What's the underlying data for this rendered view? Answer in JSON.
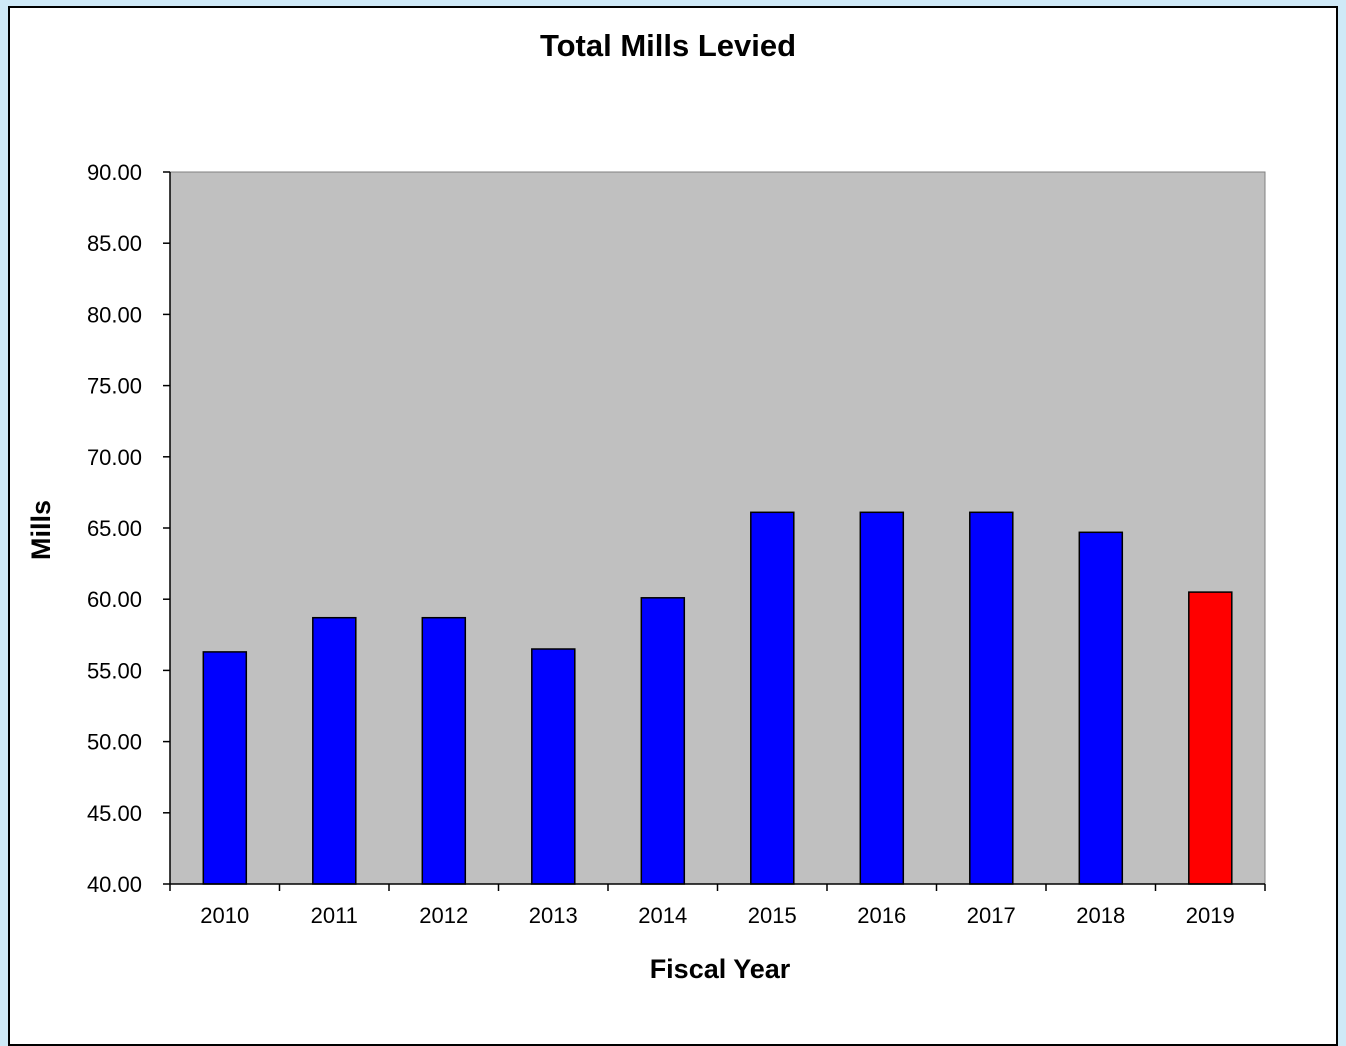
{
  "chart_data": {
    "type": "bar",
    "title": "Total Mills Levied",
    "xlabel": "Fiscal Year",
    "ylabel": "Mills",
    "categories": [
      "2010",
      "2011",
      "2012",
      "2013",
      "2014",
      "2015",
      "2016",
      "2017",
      "2018",
      "2019"
    ],
    "values": [
      56.3,
      58.7,
      58.7,
      56.5,
      60.1,
      66.1,
      66.1,
      66.1,
      64.7,
      60.5
    ],
    "ylim": [
      40,
      90
    ],
    "ytick_labels": [
      "40.00",
      "45.00",
      "50.00",
      "55.00",
      "60.00",
      "65.00",
      "70.00",
      "75.00",
      "80.00",
      "85.00",
      "90.00"
    ],
    "bar_colors": [
      "#0000ff",
      "#0000ff",
      "#0000ff",
      "#0000ff",
      "#0000ff",
      "#0000ff",
      "#0000ff",
      "#0000ff",
      "#0000ff",
      "#ff0000"
    ],
    "plot_background": "#c0c0c0",
    "grid": false,
    "legend": "none"
  }
}
